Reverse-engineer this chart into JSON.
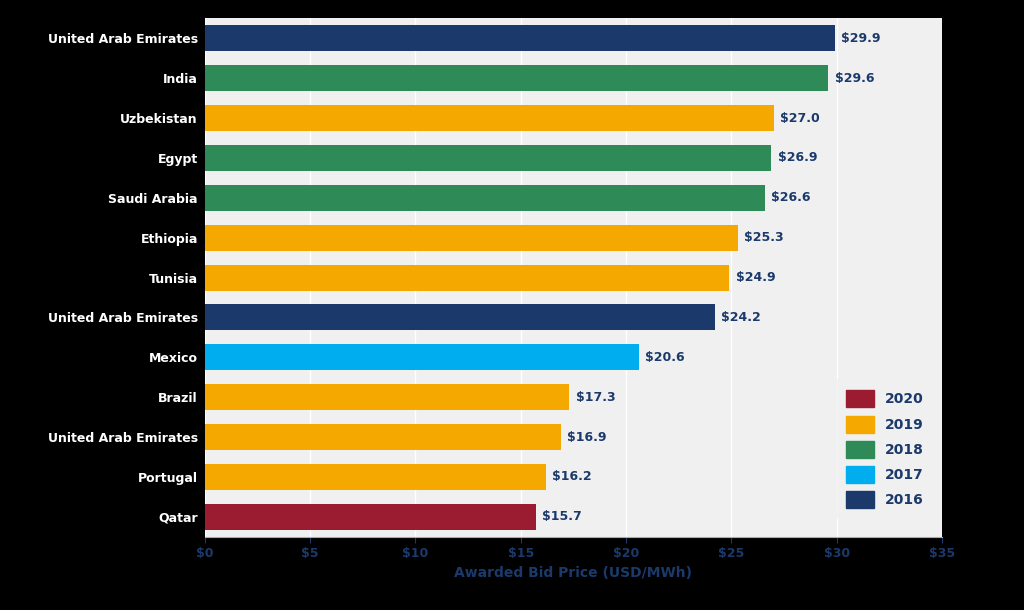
{
  "categories": [
    "United Arab Emirates",
    "India",
    "Uzbekistan",
    "Egypt",
    "Saudi Arabia",
    "Ethiopia",
    "Tunisia",
    "United Arab Emirates",
    "Mexico",
    "Brazil",
    "United Arab Emirates",
    "Portugal",
    "Qatar"
  ],
  "values": [
    29.9,
    29.6,
    27.0,
    26.9,
    26.6,
    25.3,
    24.9,
    24.2,
    20.6,
    17.3,
    16.9,
    16.2,
    15.7
  ],
  "years": [
    2016,
    2018,
    2019,
    2018,
    2018,
    2019,
    2019,
    2016,
    2017,
    2019,
    2019,
    2019,
    2020
  ],
  "bar_colors": {
    "2016": "#1B3A6B",
    "2017": "#00AEEF",
    "2018": "#2E8B57",
    "2019": "#F5A800",
    "2020": "#9B1B30"
  },
  "xlabel": "Awarded Bid Price (USD/MWh)",
  "xlim": [
    0,
    35
  ],
  "xtick_values": [
    0,
    5,
    10,
    15,
    20,
    25,
    30,
    35
  ],
  "xtick_labels": [
    "$0",
    "$5",
    "$10",
    "$15",
    "$20",
    "$25",
    "$30",
    "$35"
  ],
  "left_panel_color": "#000000",
  "plot_bg_color": "#F0F0F0",
  "figure_bg_color": "#000000",
  "label_color": "#1B3A6B",
  "legend_years": [
    2020,
    2019,
    2018,
    2017,
    2016
  ],
  "bar_height": 0.65,
  "axis_label_fontsize": 10,
  "tick_label_fontsize": 9,
  "value_label_fontsize": 9,
  "category_fontsize": 9
}
